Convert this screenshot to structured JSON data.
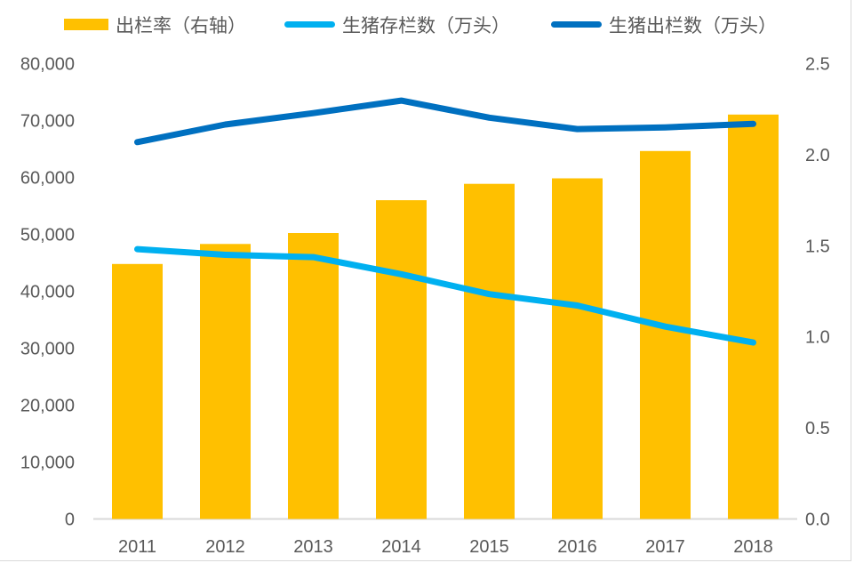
{
  "colors": {
    "background": "#FFFFFF",
    "axis_text": "#595959",
    "legend_text": "#595959",
    "axis_line": "#D9D9D9",
    "border": "#D9D9D9"
  },
  "chart_data": {
    "type": "combo",
    "title": "",
    "grid": false,
    "legend_position": "top",
    "categories": [
      "2011",
      "2012",
      "2013",
      "2014",
      "2015",
      "2016",
      "2017",
      "2018"
    ],
    "series": [
      {
        "key": "slaughter-rate",
        "name": "出栏率（右轴）",
        "type": "bar",
        "axis": "right",
        "color": "#FFC000",
        "values": [
          1.4,
          1.51,
          1.57,
          1.75,
          1.84,
          1.87,
          2.02,
          2.22
        ]
      },
      {
        "key": "pig-inventory",
        "name": "生猪存栏数（万头）",
        "type": "line",
        "axis": "left",
        "color": "#00B0F0",
        "values": [
          47400,
          46400,
          46000,
          43000,
          39500,
          37500,
          33800,
          31000
        ]
      },
      {
        "key": "pig-slaughter",
        "name": "生猪出栏数（万头）",
        "type": "line",
        "axis": "left",
        "color": "#0070C0",
        "values": [
          66200,
          69300,
          71300,
          73500,
          70500,
          68500,
          68800,
          69400
        ]
      }
    ],
    "left_axis": {
      "min": 0,
      "max": 80000,
      "step": 10000,
      "tick_labels": [
        "0",
        "10,000",
        "20,000",
        "30,000",
        "40,000",
        "50,000",
        "60,000",
        "70,000",
        "80,000"
      ]
    },
    "right_axis": {
      "min": 0,
      "max": 2.5,
      "step": 0.5,
      "tick_labels": [
        "0.0",
        "0.5",
        "1.0",
        "1.5",
        "2.0",
        "2.5"
      ]
    }
  }
}
